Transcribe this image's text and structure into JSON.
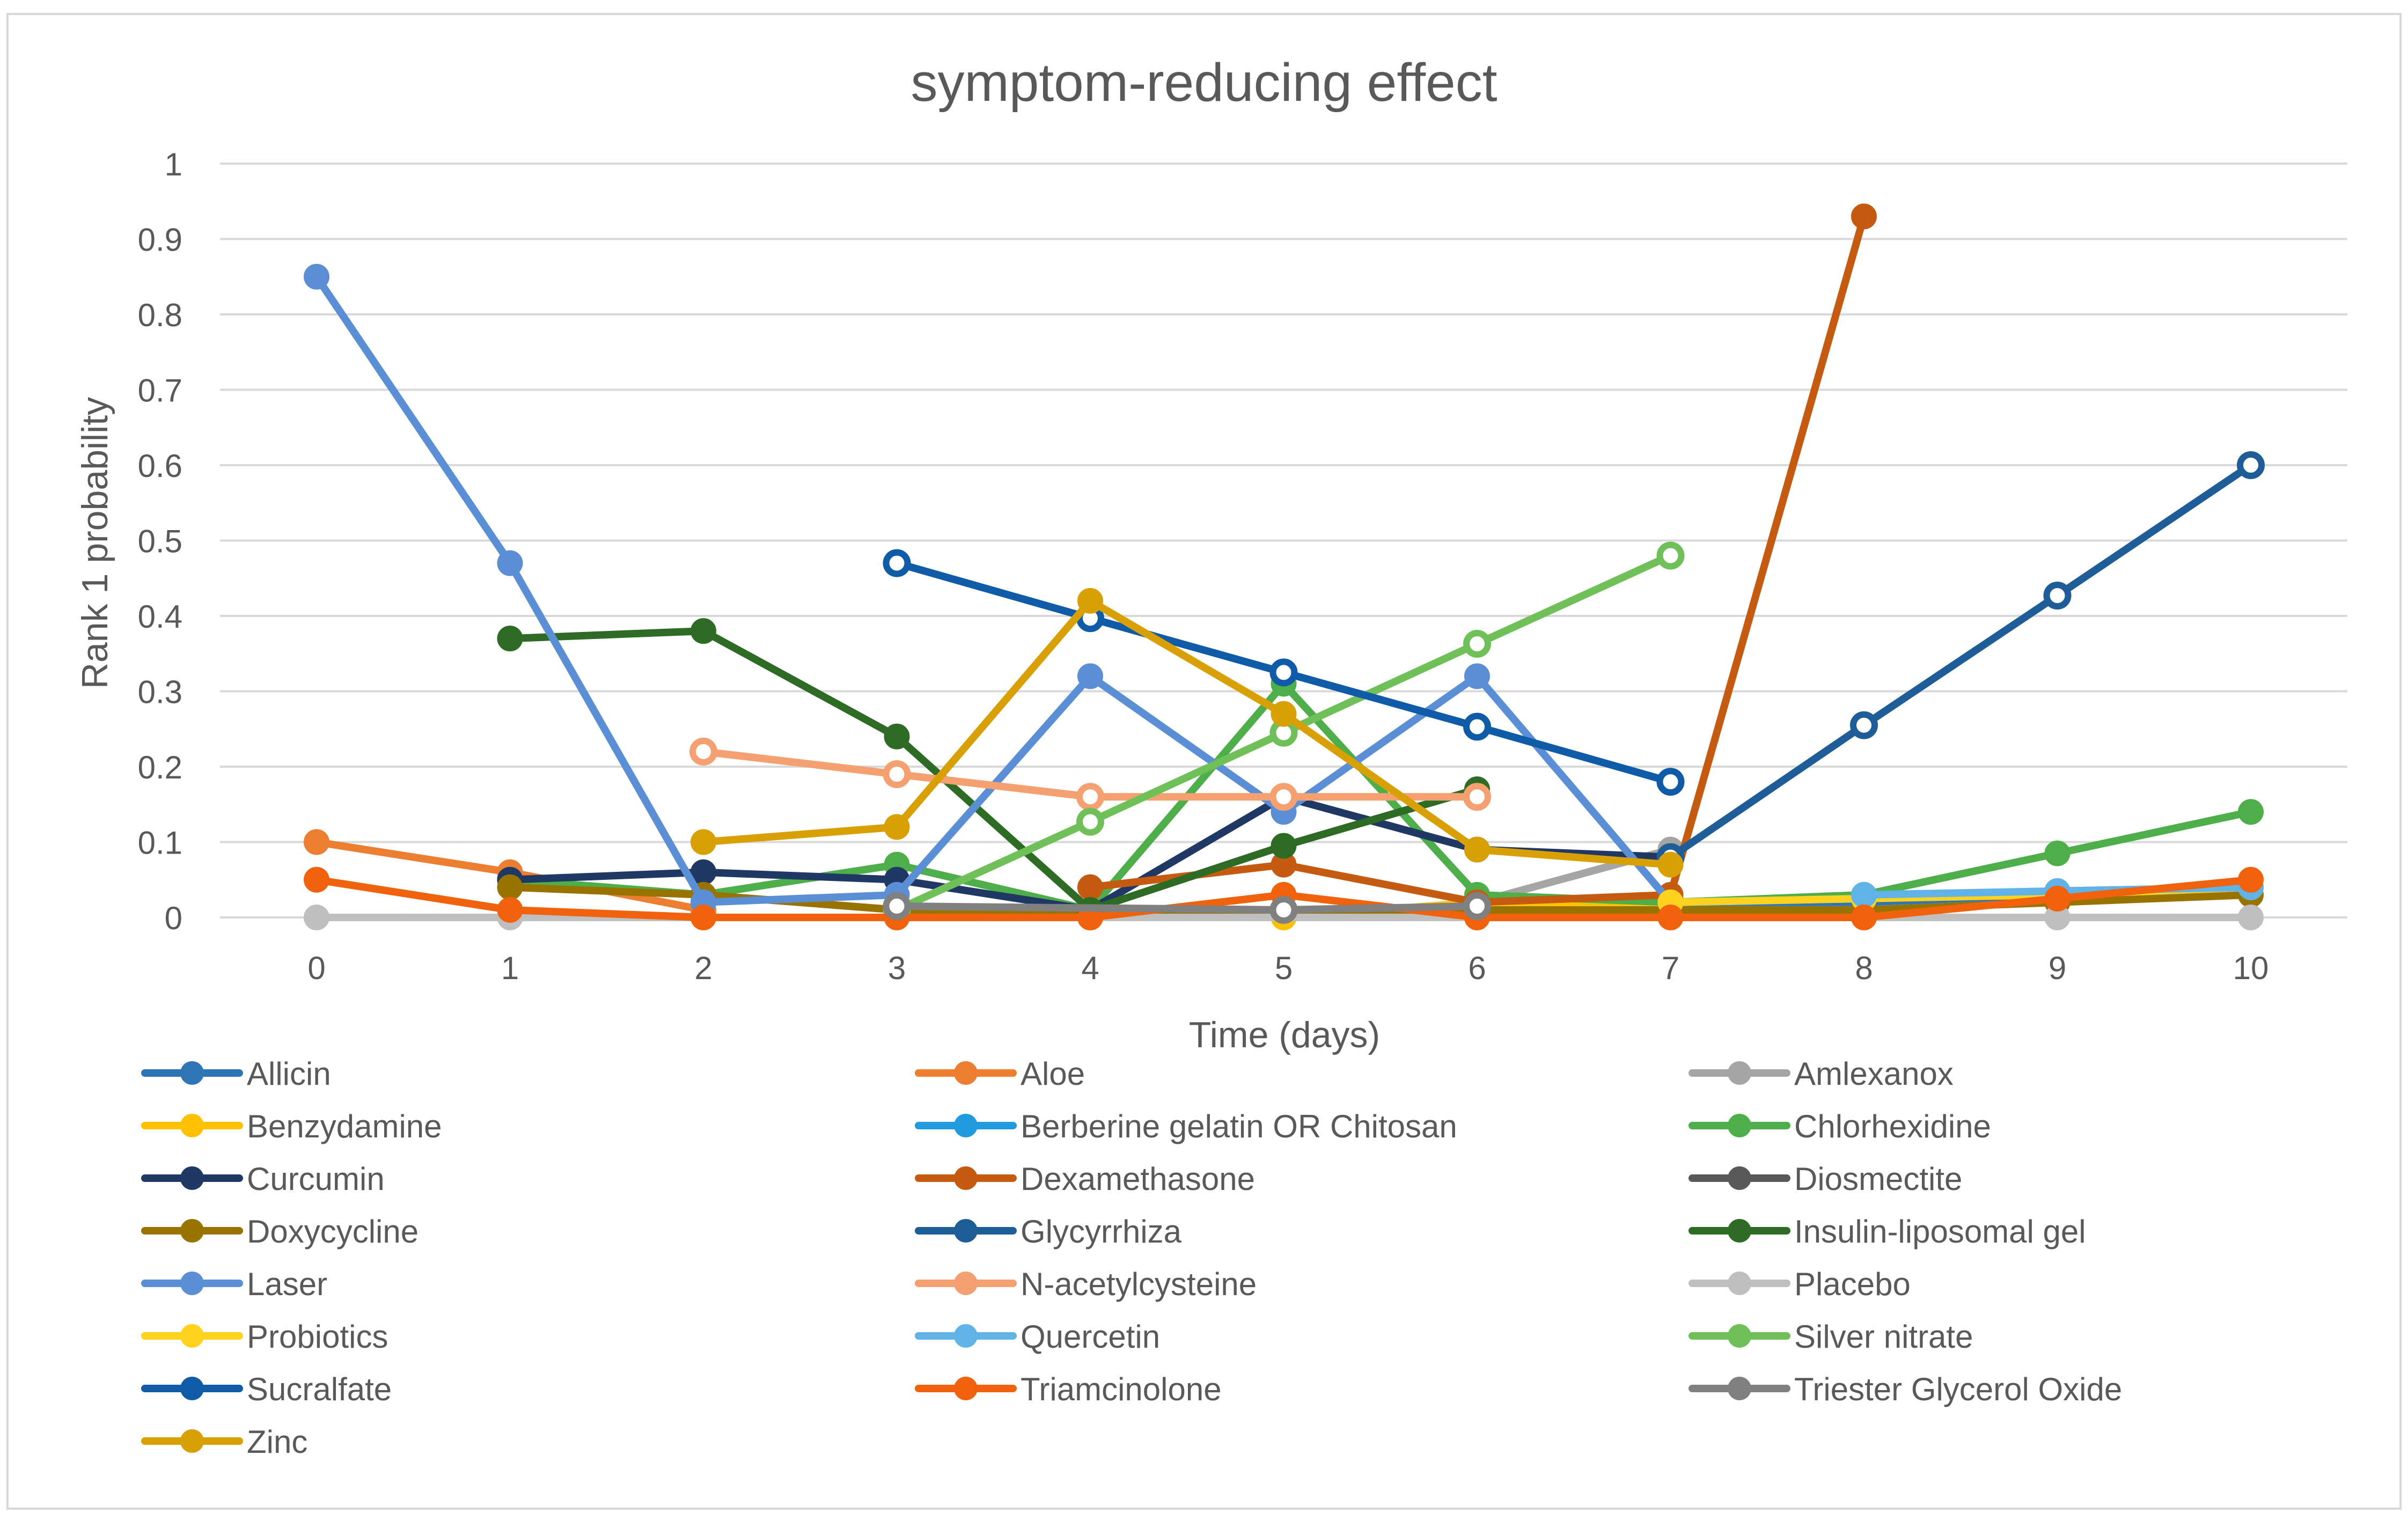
{
  "chart_data": {
    "type": "line",
    "title": "symptom-reducing effect",
    "xlabel": "Time (days)",
    "ylabel": "Rank 1 probability",
    "x": [
      0,
      1,
      2,
      3,
      4,
      5,
      6,
      7,
      8,
      9,
      10
    ],
    "x_tick_labels": [
      "0",
      "1",
      "2",
      "3",
      "4",
      "5",
      "6",
      "7",
      "8",
      "9",
      "10"
    ],
    "ylim": [
      0,
      1
    ],
    "y_tick_labels": [
      "0",
      "0.1",
      "0.2",
      "0.3",
      "0.4",
      "0.5",
      "0.6",
      "0.7",
      "0.8",
      "0.9",
      "1"
    ],
    "grid": true,
    "legend_position": "bottom",
    "series": [
      {
        "name": "Allicin",
        "color": "#2E75B6",
        "marker": "filled",
        "values": [
          null,
          null,
          null,
          null,
          null,
          null,
          null,
          0.02,
          0.02,
          0.03,
          0.04
        ]
      },
      {
        "name": "Aloe",
        "color": "#ED7D31",
        "marker": "filled",
        "values": [
          0.1,
          0.06,
          0.01,
          null,
          null,
          null,
          null,
          null,
          null,
          null,
          null
        ]
      },
      {
        "name": "Amlexanox",
        "color": "#A5A5A5",
        "marker": "filled",
        "values": [
          null,
          null,
          null,
          null,
          null,
          null,
          0.02,
          0.09,
          null,
          null,
          null
        ]
      },
      {
        "name": "Benzydamine",
        "color": "#FFC000",
        "marker": "filled",
        "values": [
          null,
          null,
          null,
          null,
          0.0,
          0.0,
          0.02,
          0.02,
          null,
          null,
          null
        ]
      },
      {
        "name": "Berberine gelatin OR Chitosan",
        "color": "#1F9BDE",
        "marker": "filled",
        "values": [
          null,
          null,
          null,
          null,
          0.04,
          null,
          null,
          null,
          null,
          null,
          null
        ]
      },
      {
        "name": "Chlorhexidine",
        "color": "#4EAE4A",
        "marker": "filled",
        "values": [
          null,
          0.05,
          0.03,
          0.07,
          0.01,
          0.31,
          0.03,
          0.02,
          0.03,
          0.085,
          0.14
        ]
      },
      {
        "name": "Curcumin",
        "color": "#1F3864",
        "marker": "filled",
        "values": [
          null,
          0.05,
          0.06,
          0.05,
          0.01,
          0.16,
          0.09,
          0.08,
          null,
          null,
          null
        ]
      },
      {
        "name": "Dexamethasone",
        "color": "#C55A11",
        "marker": "filled",
        "values": [
          null,
          null,
          null,
          null,
          0.04,
          0.07,
          0.02,
          0.03,
          0.93,
          null,
          null
        ]
      },
      {
        "name": "Diosmectite",
        "color": "#595959",
        "marker": "filled",
        "values": [
          null,
          null,
          0.03,
          0.01,
          0.0,
          null,
          null,
          null,
          null,
          null,
          null
        ]
      },
      {
        "name": "Doxycycline",
        "color": "#997300",
        "marker": "filled",
        "values": [
          null,
          0.04,
          0.03,
          0.01,
          null,
          null,
          null,
          null,
          0.01,
          0.02,
          0.03
        ]
      },
      {
        "name": "Glycyrrhiza",
        "color": "#1F5D99",
        "marker": "hollow",
        "values": [
          null,
          null,
          null,
          null,
          null,
          null,
          null,
          0.08,
          0.255,
          0.427,
          0.6
        ]
      },
      {
        "name": "Insulin-liposomal gel",
        "color": "#2E6B25",
        "marker": "filled",
        "values": [
          null,
          0.37,
          0.38,
          0.24,
          0.01,
          0.095,
          0.17,
          null,
          null,
          null,
          null
        ]
      },
      {
        "name": "Laser",
        "color": "#5B8FD5",
        "marker": "filled",
        "values": [
          0.85,
          0.47,
          0.02,
          0.03,
          0.32,
          0.14,
          0.32,
          0.02,
          0.025,
          0.035,
          0.04
        ]
      },
      {
        "name": "N-acetylcysteine",
        "color": "#F4A070",
        "marker": "hollow",
        "values": [
          null,
          null,
          0.22,
          0.19,
          0.16,
          0.16,
          0.16,
          null,
          null,
          null,
          null
        ]
      },
      {
        "name": "Placebo",
        "color": "#BFBFBF",
        "marker": "filled",
        "values": [
          0.0,
          0.0,
          null,
          null,
          null,
          null,
          null,
          null,
          null,
          0.0,
          0.0
        ]
      },
      {
        "name": "Probiotics",
        "color": "#FFD21F",
        "marker": "filled",
        "values": [
          null,
          null,
          null,
          null,
          null,
          null,
          null,
          0.02,
          0.025,
          0.03,
          0.04
        ]
      },
      {
        "name": "Quercetin",
        "color": "#5FB3E6",
        "marker": "filled",
        "values": [
          null,
          null,
          null,
          null,
          null,
          null,
          null,
          null,
          0.03,
          0.035,
          0.04
        ]
      },
      {
        "name": "Silver nitrate",
        "color": "#70C05A",
        "marker": "hollow",
        "values": [
          null,
          null,
          null,
          0.01,
          0.127,
          0.245,
          0.363,
          0.48,
          null,
          null,
          null
        ]
      },
      {
        "name": "Sucralfate",
        "color": "#0F5BA8",
        "marker": "hollow",
        "values": [
          null,
          null,
          null,
          0.47,
          0.397,
          0.325,
          0.253,
          0.18,
          null,
          null,
          null
        ]
      },
      {
        "name": "Triamcinolone",
        "color": "#F0620B",
        "marker": "filled",
        "values": [
          0.05,
          0.01,
          0.0,
          0.0,
          0.0,
          0.03,
          0.0,
          0.0,
          0.0,
          0.025,
          0.05
        ]
      },
      {
        "name": "Triester Glycerol Oxide",
        "color": "#808080",
        "marker": "hollow",
        "values": [
          null,
          null,
          null,
          0.015,
          null,
          0.01,
          0.015,
          null,
          null,
          null,
          null
        ]
      },
      {
        "name": "Zinc",
        "color": "#D9A006",
        "marker": "filled",
        "values": [
          null,
          null,
          0.1,
          0.12,
          0.42,
          0.27,
          0.09,
          0.07,
          null,
          null,
          null
        ]
      }
    ]
  }
}
